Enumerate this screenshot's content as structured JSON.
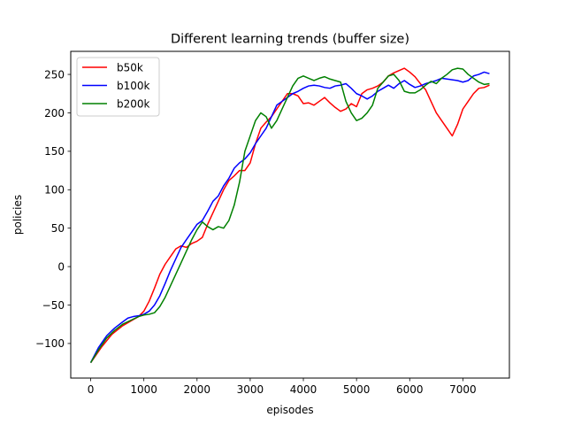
{
  "chart_data": {
    "type": "line",
    "title": "Different learning trends (buffer size)",
    "xlabel": "episodes",
    "ylabel": "policies",
    "xlim": [
      -375,
      7875
    ],
    "ylim": [
      -145,
      280
    ],
    "xticks": [
      0,
      1000,
      2000,
      3000,
      4000,
      5000,
      6000,
      7000
    ],
    "yticks": [
      -100,
      -50,
      0,
      50,
      100,
      150,
      200,
      250
    ],
    "grid": false,
    "legend": "top-left",
    "series": [
      {
        "name": "b50k",
        "color": "#ff0000",
        "points": [
          [
            0,
            -125
          ],
          [
            200,
            -105
          ],
          [
            400,
            -88
          ],
          [
            600,
            -77
          ],
          [
            800,
            -69
          ],
          [
            900,
            -65
          ],
          [
            1000,
            -58
          ],
          [
            1100,
            -45
          ],
          [
            1200,
            -28
          ],
          [
            1300,
            -10
          ],
          [
            1400,
            3
          ],
          [
            1500,
            13
          ],
          [
            1600,
            23
          ],
          [
            1700,
            27
          ],
          [
            1800,
            25
          ],
          [
            1900,
            30
          ],
          [
            2000,
            33
          ],
          [
            2100,
            38
          ],
          [
            2200,
            55
          ],
          [
            2300,
            70
          ],
          [
            2400,
            85
          ],
          [
            2500,
            100
          ],
          [
            2600,
            112
          ],
          [
            2700,
            118
          ],
          [
            2800,
            125
          ],
          [
            2900,
            125
          ],
          [
            3000,
            135
          ],
          [
            3100,
            160
          ],
          [
            3200,
            180
          ],
          [
            3300,
            188
          ],
          [
            3400,
            195
          ],
          [
            3500,
            205
          ],
          [
            3600,
            215
          ],
          [
            3700,
            225
          ],
          [
            3800,
            225
          ],
          [
            3900,
            222
          ],
          [
            4000,
            212
          ],
          [
            4100,
            213
          ],
          [
            4200,
            210
          ],
          [
            4300,
            215
          ],
          [
            4400,
            220
          ],
          [
            4500,
            213
          ],
          [
            4600,
            207
          ],
          [
            4700,
            202
          ],
          [
            4800,
            205
          ],
          [
            4900,
            212
          ],
          [
            5000,
            208
          ],
          [
            5100,
            225
          ],
          [
            5200,
            230
          ],
          [
            5300,
            232
          ],
          [
            5400,
            235
          ],
          [
            5500,
            240
          ],
          [
            5600,
            248
          ],
          [
            5700,
            252
          ],
          [
            5800,
            255
          ],
          [
            5900,
            258
          ],
          [
            6000,
            253
          ],
          [
            6100,
            247
          ],
          [
            6200,
            238
          ],
          [
            6300,
            230
          ],
          [
            6400,
            215
          ],
          [
            6500,
            200
          ],
          [
            6600,
            190
          ],
          [
            6700,
            180
          ],
          [
            6800,
            170
          ],
          [
            6900,
            185
          ],
          [
            7000,
            205
          ],
          [
            7100,
            215
          ],
          [
            7200,
            225
          ],
          [
            7300,
            232
          ],
          [
            7400,
            233
          ],
          [
            7500,
            236
          ]
        ]
      },
      {
        "name": "b100k",
        "color": "#0000ff",
        "points": [
          [
            0,
            -125
          ],
          [
            150,
            -105
          ],
          [
            300,
            -90
          ],
          [
            450,
            -80
          ],
          [
            600,
            -72
          ],
          [
            700,
            -67
          ],
          [
            800,
            -65
          ],
          [
            900,
            -64
          ],
          [
            1000,
            -62
          ],
          [
            1100,
            -58
          ],
          [
            1200,
            -50
          ],
          [
            1300,
            -38
          ],
          [
            1400,
            -22
          ],
          [
            1500,
            -5
          ],
          [
            1600,
            10
          ],
          [
            1700,
            25
          ],
          [
            1800,
            35
          ],
          [
            1900,
            45
          ],
          [
            2000,
            55
          ],
          [
            2100,
            60
          ],
          [
            2200,
            72
          ],
          [
            2300,
            85
          ],
          [
            2400,
            92
          ],
          [
            2500,
            105
          ],
          [
            2600,
            115
          ],
          [
            2700,
            128
          ],
          [
            2800,
            135
          ],
          [
            2900,
            140
          ],
          [
            3000,
            148
          ],
          [
            3100,
            160
          ],
          [
            3200,
            170
          ],
          [
            3300,
            180
          ],
          [
            3400,
            195
          ],
          [
            3500,
            210
          ],
          [
            3600,
            215
          ],
          [
            3700,
            220
          ],
          [
            3800,
            225
          ],
          [
            3900,
            228
          ],
          [
            4000,
            232
          ],
          [
            4100,
            235
          ],
          [
            4200,
            236
          ],
          [
            4300,
            235
          ],
          [
            4400,
            233
          ],
          [
            4500,
            232
          ],
          [
            4600,
            235
          ],
          [
            4700,
            236
          ],
          [
            4800,
            238
          ],
          [
            4900,
            232
          ],
          [
            5000,
            225
          ],
          [
            5100,
            222
          ],
          [
            5200,
            218
          ],
          [
            5300,
            222
          ],
          [
            5400,
            228
          ],
          [
            5500,
            232
          ],
          [
            5600,
            236
          ],
          [
            5700,
            232
          ],
          [
            5800,
            238
          ],
          [
            5900,
            242
          ],
          [
            6000,
            237
          ],
          [
            6100,
            233
          ],
          [
            6200,
            235
          ],
          [
            6300,
            238
          ],
          [
            6400,
            240
          ],
          [
            6500,
            242
          ],
          [
            6600,
            245
          ],
          [
            6700,
            244
          ],
          [
            6800,
            243
          ],
          [
            6900,
            242
          ],
          [
            7000,
            240
          ],
          [
            7100,
            242
          ],
          [
            7200,
            248
          ],
          [
            7300,
            250
          ],
          [
            7400,
            253
          ],
          [
            7500,
            251
          ]
        ]
      },
      {
        "name": "b200k",
        "color": "#008000",
        "points": [
          [
            0,
            -125
          ],
          [
            150,
            -108
          ],
          [
            300,
            -93
          ],
          [
            450,
            -83
          ],
          [
            600,
            -75
          ],
          [
            750,
            -70
          ],
          [
            900,
            -65
          ],
          [
            1000,
            -63
          ],
          [
            1100,
            -62
          ],
          [
            1200,
            -60
          ],
          [
            1300,
            -52
          ],
          [
            1400,
            -40
          ],
          [
            1500,
            -25
          ],
          [
            1600,
            -10
          ],
          [
            1700,
            5
          ],
          [
            1800,
            20
          ],
          [
            1900,
            35
          ],
          [
            2000,
            48
          ],
          [
            2100,
            58
          ],
          [
            2200,
            52
          ],
          [
            2300,
            48
          ],
          [
            2400,
            52
          ],
          [
            2500,
            50
          ],
          [
            2600,
            60
          ],
          [
            2700,
            80
          ],
          [
            2800,
            110
          ],
          [
            2900,
            150
          ],
          [
            3000,
            170
          ],
          [
            3100,
            190
          ],
          [
            3200,
            200
          ],
          [
            3300,
            195
          ],
          [
            3400,
            180
          ],
          [
            3500,
            190
          ],
          [
            3600,
            205
          ],
          [
            3700,
            220
          ],
          [
            3800,
            235
          ],
          [
            3900,
            245
          ],
          [
            4000,
            248
          ],
          [
            4100,
            245
          ],
          [
            4200,
            242
          ],
          [
            4300,
            245
          ],
          [
            4400,
            247
          ],
          [
            4500,
            244
          ],
          [
            4600,
            242
          ],
          [
            4700,
            240
          ],
          [
            4800,
            215
          ],
          [
            4900,
            200
          ],
          [
            5000,
            190
          ],
          [
            5100,
            193
          ],
          [
            5200,
            200
          ],
          [
            5300,
            210
          ],
          [
            5400,
            232
          ],
          [
            5500,
            240
          ],
          [
            5600,
            248
          ],
          [
            5700,
            250
          ],
          [
            5800,
            242
          ],
          [
            5900,
            228
          ],
          [
            6000,
            226
          ],
          [
            6100,
            226
          ],
          [
            6200,
            230
          ],
          [
            6300,
            236
          ],
          [
            6400,
            241
          ],
          [
            6500,
            238
          ],
          [
            6600,
            245
          ],
          [
            6700,
            250
          ],
          [
            6800,
            256
          ],
          [
            6900,
            258
          ],
          [
            7000,
            257
          ],
          [
            7100,
            250
          ],
          [
            7200,
            245
          ],
          [
            7300,
            240
          ],
          [
            7400,
            237
          ],
          [
            7500,
            238
          ]
        ]
      }
    ]
  }
}
